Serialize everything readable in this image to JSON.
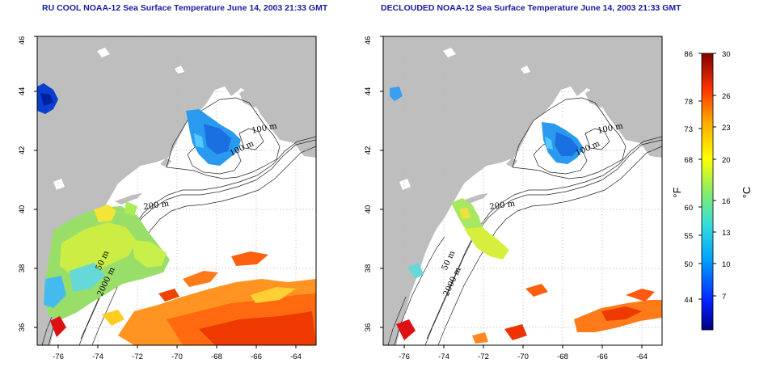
{
  "titles": {
    "left": "RU COOL NOAA-12 Sea Surface Temperature June 14, 2003 21:33 GMT",
    "right": "DECLOUDED NOAA-12 Sea Surface Temperature June 14, 2003 21:33 GMT"
  },
  "axes": {
    "x_ticks": [
      "-76",
      "-74",
      "-72",
      "-70",
      "-68",
      "-66",
      "-64"
    ],
    "y_ticks": [
      "36",
      "38",
      "40",
      "42",
      "44",
      "46"
    ]
  },
  "contour_labels": {
    "depth_100": "100 m",
    "depth_200": "200 m",
    "depth_2000": "2000 m",
    "depth_50": "50 m"
  },
  "colorbar": {
    "fahrenheit_ticks": [
      "86",
      "78",
      "73",
      "68",
      "60",
      "55",
      "50",
      "44"
    ],
    "celsius_ticks": [
      "30",
      "26",
      "23",
      "20",
      "16",
      "13",
      "10",
      "7"
    ],
    "fahrenheit_unit": "°F",
    "celsius_unit": "°C",
    "colors": [
      "#00007f",
      "#0033ff",
      "#00aaff",
      "#33ddcc",
      "#88ee66",
      "#ffff00",
      "#ffaa00",
      "#ff4400",
      "#cc0000",
      "#7f0000"
    ]
  },
  "colors": {
    "land": "#bebebe",
    "title_text": "#1a1aa0",
    "grid": "#cfcfcf"
  }
}
